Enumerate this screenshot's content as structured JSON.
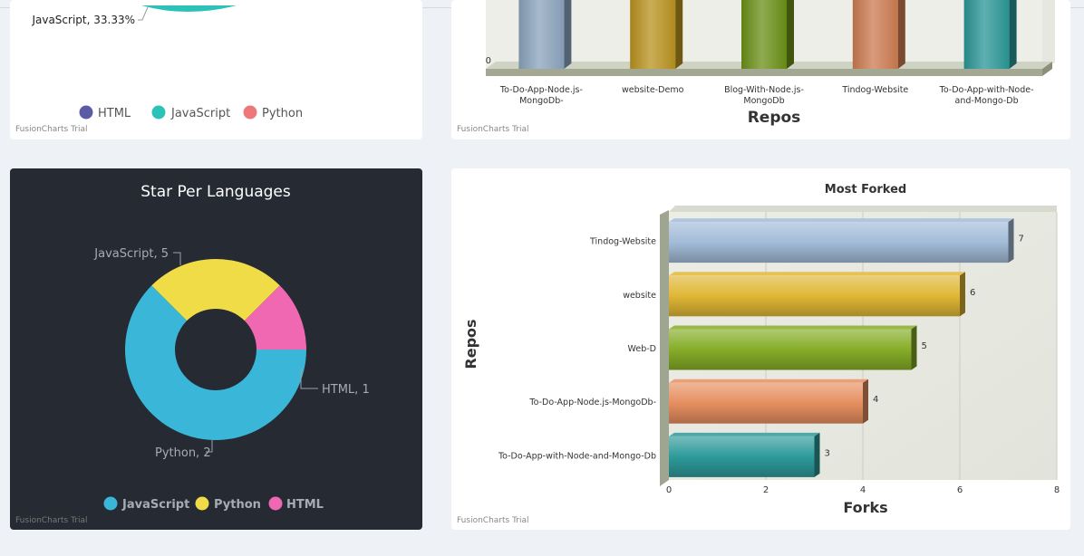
{
  "charts": [
    {
      "type": "pie",
      "title": "",
      "labels": [
        "JavaScript, 33.33%"
      ],
      "legend": [
        "HTML",
        "JavaScript",
        "Python"
      ],
      "colors": [
        "#5b5ba6",
        "#2cc2b8",
        "#ee7877"
      ],
      "trial": "FusionCharts Trial",
      "legend_placement": "bottom"
    },
    {
      "type": "bar",
      "categories": [
        "To-Do-App-Node.js-MongoDb-",
        "website-Demo",
        "Blog-With-Node.js-MongoDb",
        "Tindog-Website",
        "To-Do-App-with-Node-and-Mongo-Db"
      ],
      "category_lines": [
        [
          "To-Do-App-Node.js-",
          "MongoDb-"
        ],
        [
          "website-Demo"
        ],
        [
          "Blog-With-Node.js-",
          "MongoDb"
        ],
        [
          "Tindog-Website"
        ],
        [
          "To-Do-App-with-Node-",
          "and-Mongo-Db"
        ]
      ],
      "colors": [
        "#8aa3bc",
        "#b8921e",
        "#6a8f16",
        "#cc7a50",
        "#2a9696"
      ],
      "xlabel": "Repos",
      "ylabel": "",
      "y_ticks": [
        "0"
      ],
      "trial": "FusionCharts Trial"
    },
    {
      "type": "pie",
      "subtype": "doughnut",
      "title": "Star Per Languages",
      "slices": [
        {
          "name": "JavaScript",
          "value": 5,
          "color": "#3ab6d9",
          "label": "JavaScript, 5"
        },
        {
          "name": "Python",
          "value": 2,
          "color": "#f0dc46",
          "label": "Python, 2"
        },
        {
          "name": "HTML",
          "value": 1,
          "color": "#ef68b1",
          "label": "HTML, 1"
        }
      ],
      "legend": [
        "JavaScript",
        "Python",
        "HTML"
      ],
      "legend_placement": "bottom",
      "trial": "FusionCharts Trial"
    },
    {
      "type": "bar",
      "orientation": "horizontal",
      "title": "Most Forked",
      "categories": [
        "Tindog-Website",
        "website",
        "Web-D",
        "To-Do-App-Node.js-MongoDb-",
        "To-Do-App-with-Node-and-Mongo-Db"
      ],
      "values": [
        7,
        6,
        5,
        4,
        3
      ],
      "colors": [
        "#a3bcd8",
        "#e0b735",
        "#86ad28",
        "#e68f60",
        "#2e9a9a"
      ],
      "xlabel": "Forks",
      "ylabel": "Repos",
      "xlim": [
        0,
        8
      ],
      "x_ticks": [
        0,
        2,
        4,
        6,
        8
      ],
      "grid": true,
      "trial": "FusionCharts Trial"
    }
  ]
}
